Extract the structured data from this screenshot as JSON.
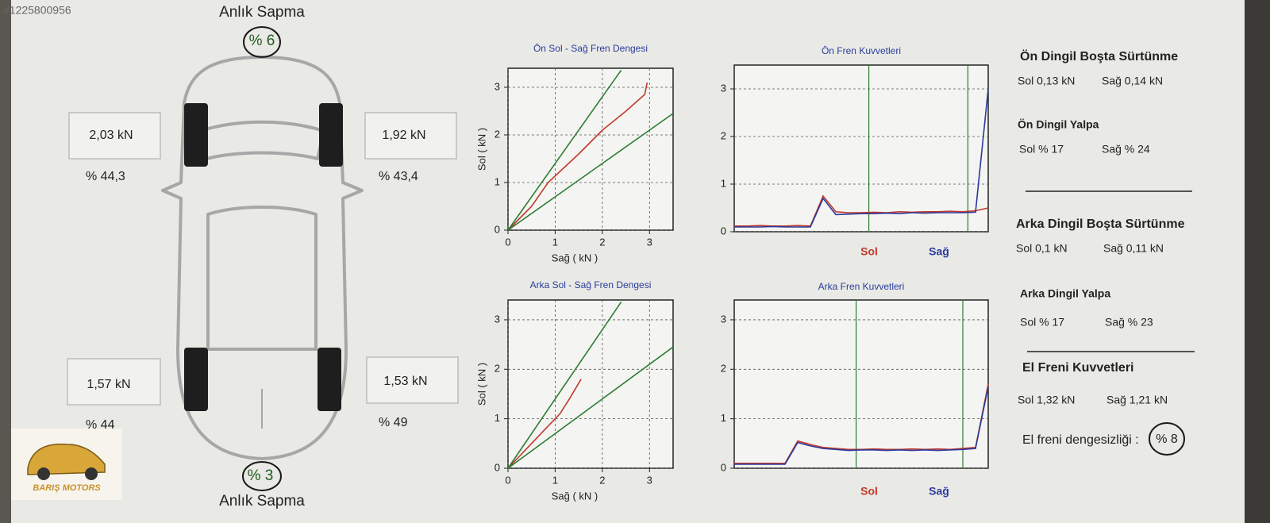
{
  "watermark": "#1225800956",
  "car": {
    "top_deviation": {
      "label": "Anlık Sapma",
      "value": "% 6"
    },
    "bottom_deviation": {
      "label": "Anlık Sapma",
      "value": "% 3"
    },
    "front_left": {
      "force": "2,03 kN",
      "percent": "% 44,3"
    },
    "front_right": {
      "force": "1,92 kN",
      "percent": "% 43,4"
    },
    "rear_left": {
      "force": "1,57 kN",
      "percent": "% 44"
    },
    "rear_right": {
      "force": "1,53 kN",
      "percent": "% 49"
    }
  },
  "logo": "BARIŞ MOTORS",
  "chart_data": [
    {
      "type": "line",
      "title": "Ön Sol - Sağ Fren Dengesi",
      "xlabel": "Sağ ( kN )",
      "ylabel": "Sol ( kN )",
      "xlim": [
        0,
        3.5
      ],
      "ylim": [
        0,
        3.4
      ],
      "xticks": [
        0,
        1,
        2,
        3
      ],
      "yticks": [
        0,
        1,
        2,
        3
      ],
      "grid": true,
      "series": [
        {
          "color": "#c0392b",
          "x": [
            0,
            0.3,
            0.5,
            0.85,
            1.5,
            2.0,
            2.5,
            2.9,
            2.95
          ],
          "values": [
            0,
            0.3,
            0.5,
            1.0,
            1.6,
            2.1,
            2.5,
            2.85,
            3.1
          ]
        },
        {
          "color": "#2e7d32",
          "x": [
            0,
            2.4
          ],
          "values": [
            0,
            3.36
          ]
        },
        {
          "color": "#2e7d32",
          "x": [
            0,
            3.5
          ],
          "values": [
            0,
            2.45
          ]
        }
      ]
    },
    {
      "type": "line",
      "title": "Ön Fren Kuvvetleri",
      "ylim": [
        0,
        3.5
      ],
      "yticks": [
        0,
        1,
        2,
        3
      ],
      "grid": true,
      "series": [
        {
          "name": "Sol",
          "color": "#c0392b",
          "values": [
            0.12,
            0.12,
            0.13,
            0.12,
            0.12,
            0.13,
            0.12,
            0.75,
            0.42,
            0.4,
            0.4,
            0.41,
            0.4,
            0.42,
            0.41,
            0.42,
            0.42,
            0.43,
            0.42,
            0.44,
            0.5
          ]
        },
        {
          "name": "Sağ",
          "color": "#2b3a9e",
          "values": [
            0.1,
            0.1,
            0.1,
            0.11,
            0.1,
            0.1,
            0.1,
            0.7,
            0.36,
            0.37,
            0.38,
            0.38,
            0.39,
            0.38,
            0.4,
            0.39,
            0.4,
            0.4,
            0.4,
            0.41,
            3.0
          ]
        }
      ]
    },
    {
      "type": "line",
      "title": "Arka Sol - Sağ Fren Dengesi",
      "xlabel": "Sağ ( kN )",
      "ylabel": "Sol ( kN )",
      "xlim": [
        0,
        3.5
      ],
      "ylim": [
        0,
        3.4
      ],
      "xticks": [
        0,
        1,
        2,
        3
      ],
      "yticks": [
        0,
        1,
        2,
        3
      ],
      "grid": true,
      "series": [
        {
          "color": "#c0392b",
          "x": [
            0,
            0.3,
            0.5,
            0.8,
            1.1,
            1.3,
            1.55
          ],
          "values": [
            0,
            0.3,
            0.5,
            0.8,
            1.1,
            1.4,
            1.8
          ]
        },
        {
          "color": "#2e7d32",
          "x": [
            0,
            2.4
          ],
          "values": [
            0,
            3.36
          ]
        },
        {
          "color": "#2e7d32",
          "x": [
            0,
            3.5
          ],
          "values": [
            0,
            2.45
          ]
        }
      ]
    },
    {
      "type": "line",
      "title": "Arka Fren Kuvvetleri",
      "ylim": [
        0,
        3.4
      ],
      "yticks": [
        0,
        1,
        2,
        3
      ],
      "grid": true,
      "series": [
        {
          "name": "Sol",
          "color": "#c0392b",
          "values": [
            0.1,
            0.1,
            0.1,
            0.1,
            0.1,
            0.55,
            0.48,
            0.42,
            0.4,
            0.38,
            0.38,
            0.39,
            0.38,
            0.38,
            0.39,
            0.38,
            0.39,
            0.38,
            0.4,
            0.42,
            1.7
          ]
        },
        {
          "name": "Sağ",
          "color": "#2b3a9e",
          "values": [
            0.08,
            0.08,
            0.08,
            0.08,
            0.08,
            0.52,
            0.45,
            0.4,
            0.38,
            0.36,
            0.37,
            0.37,
            0.36,
            0.37,
            0.36,
            0.37,
            0.36,
            0.37,
            0.38,
            0.4,
            1.65
          ]
        }
      ]
    }
  ],
  "summary": {
    "front_rolling": {
      "title": "Ön Dingil Boşta Sürtünme",
      "left": "Sol 0,13 kN",
      "right": "Sağ 0,14 kN"
    },
    "front_wobble": {
      "title": "Ön Dingil Yalpa",
      "left": "Sol % 17",
      "right": "Sağ % 24"
    },
    "rear_rolling": {
      "title": "Arka Dingil Boşta Sürtünme",
      "left": "Sol 0,1 kN",
      "right": "Sağ 0,11 kN"
    },
    "rear_wobble": {
      "title": "Arka Dingil Yalpa",
      "left": "Sol % 17",
      "right": "Sağ % 23"
    },
    "handbrake": {
      "title": "El Freni Kuvvetleri",
      "left": "Sol 1,32 kN",
      "right": "Sağ 1,21 kN"
    },
    "handbrake_imbalance": {
      "label": "El freni dengesizliği :",
      "value": "% 8"
    }
  }
}
